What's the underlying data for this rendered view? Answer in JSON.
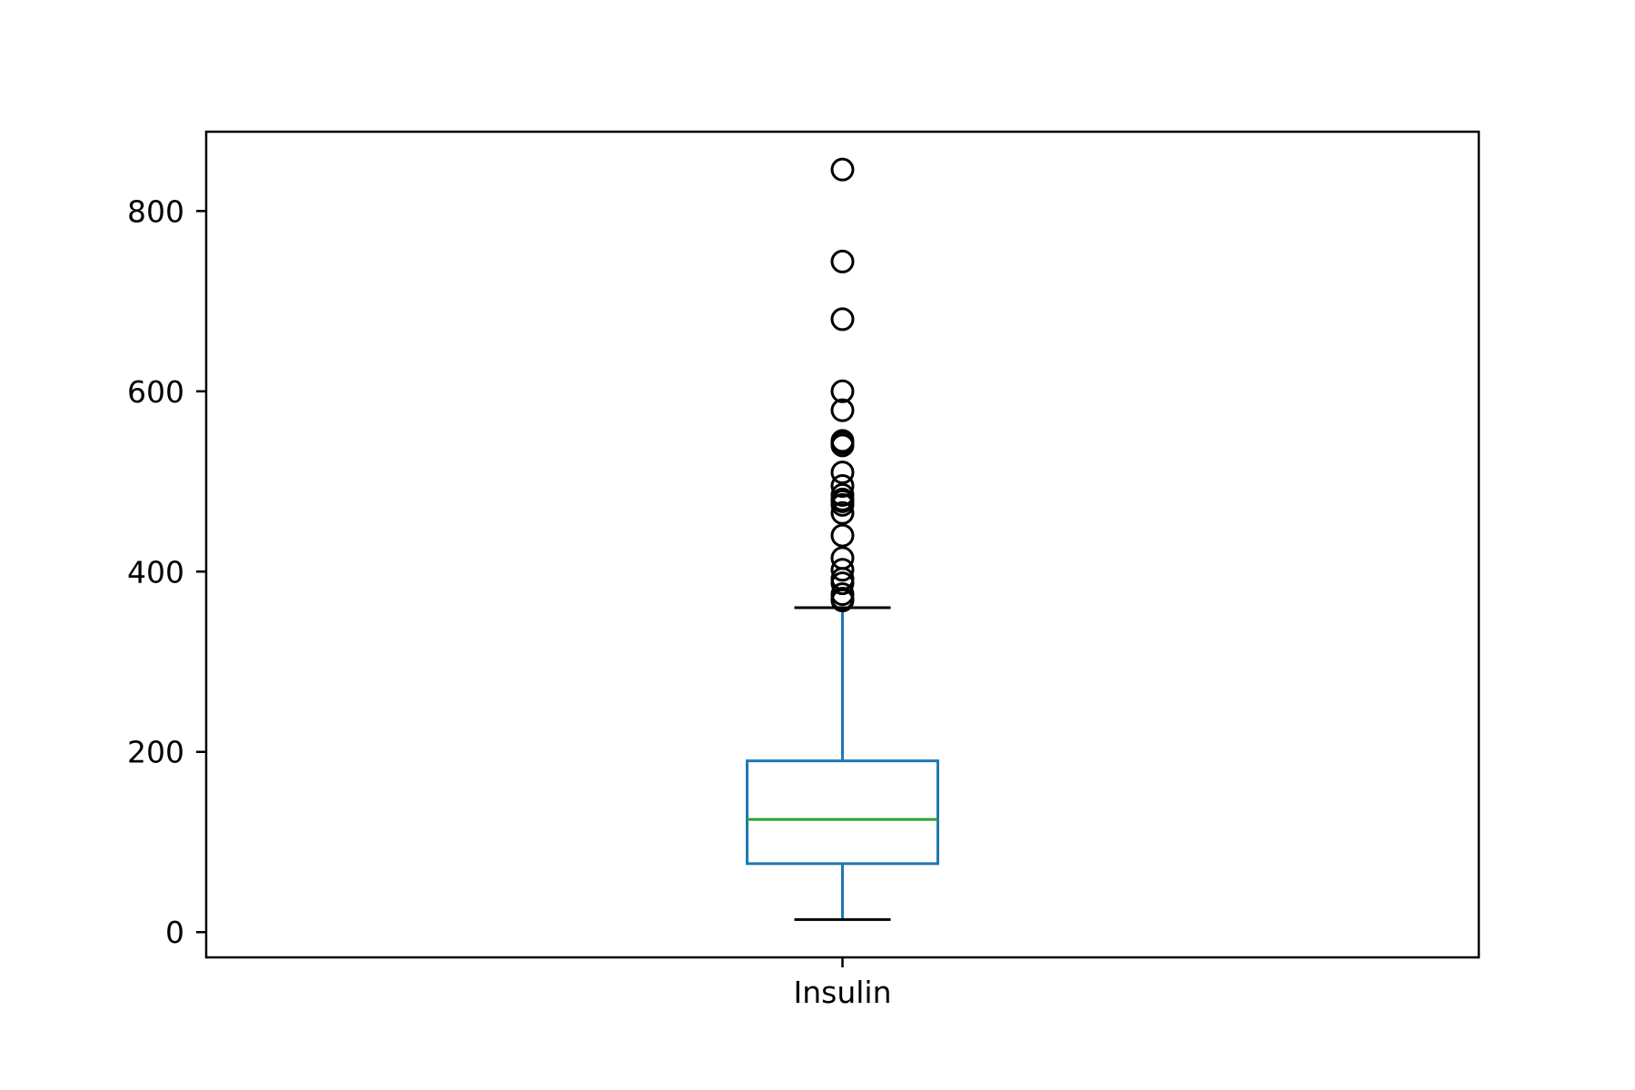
{
  "chart_data": {
    "type": "box",
    "title": "",
    "xlabel": "",
    "ylabel": "",
    "ylim": [
      -28,
      888
    ],
    "yticks": [
      0,
      200,
      400,
      600,
      800
    ],
    "grid": false,
    "categories": [
      "Insulin"
    ],
    "boxes": [
      {
        "name": "Insulin",
        "whisker_low": 14,
        "q1": 76,
        "median": 125,
        "q3": 190,
        "whisker_high": 360,
        "outliers": [
          846,
          744,
          680,
          600,
          579,
          545,
          543,
          540,
          510,
          495,
          485,
          480,
          478,
          474,
          465,
          440,
          415,
          402,
          392,
          387,
          375,
          370,
          368
        ]
      }
    ],
    "colors": {
      "box": "#1f77b4",
      "whisker": "#1f77b4",
      "cap": "#000000",
      "median": "#2ca02c",
      "outlier": "#000000",
      "axes": "#000000"
    }
  }
}
